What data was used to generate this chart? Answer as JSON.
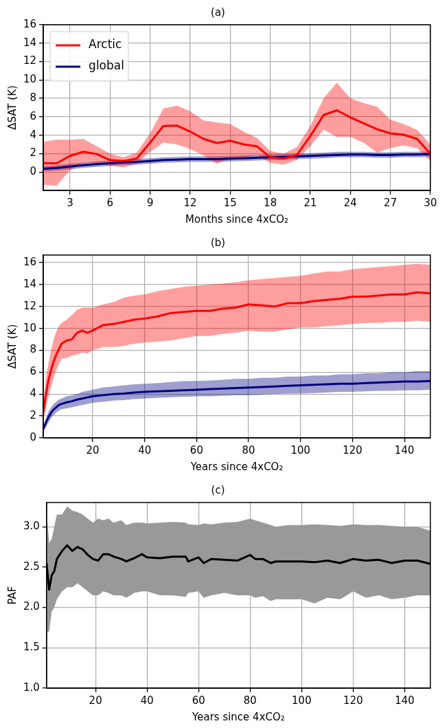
{
  "chart_data": [
    {
      "type": "line",
      "title": "(a)",
      "xlabel": "Months since 4xCO₂",
      "ylabel": "ΔSAT (K)",
      "x": [
        1,
        2,
        3,
        4,
        5,
        6,
        7,
        8,
        9,
        10,
        11,
        12,
        13,
        14,
        15,
        16,
        17,
        18,
        19,
        20,
        21,
        22,
        23,
        24,
        25,
        26,
        27,
        28,
        29,
        30
      ],
      "xlim": [
        1,
        30
      ],
      "xticks": [
        3,
        6,
        9,
        12,
        15,
        18,
        21,
        24,
        27,
        30
      ],
      "ylim": [
        -2,
        16
      ],
      "yticks": [
        0,
        2,
        4,
        6,
        8,
        10,
        12,
        14,
        16
      ],
      "grid": true,
      "legend": "top left",
      "series": [
        {
          "name": "Arctic",
          "color": "#ff0000",
          "values": [
            0.95,
            0.95,
            1.75,
            2.2,
            1.95,
            1.3,
            1.2,
            1.45,
            3.2,
            5.0,
            5.05,
            4.4,
            3.6,
            3.15,
            3.4,
            3.0,
            2.8,
            1.6,
            1.45,
            1.85,
            3.9,
            6.2,
            6.7,
            5.95,
            5.3,
            4.65,
            4.2,
            4.05,
            3.6,
            2.0
          ],
          "upper": [
            3.3,
            3.5,
            3.5,
            3.6,
            2.8,
            2.0,
            1.6,
            2.1,
            4.2,
            6.9,
            7.2,
            6.6,
            5.6,
            5.4,
            5.2,
            4.4,
            3.7,
            2.3,
            2.0,
            2.7,
            5.0,
            8.0,
            9.7,
            8.0,
            7.5,
            7.1,
            5.7,
            5.2,
            4.6,
            3.0
          ],
          "lower": [
            -1.4,
            -1.5,
            0.2,
            1.0,
            1.0,
            0.7,
            0.5,
            0.9,
            2.2,
            3.2,
            3.0,
            2.5,
            1.8,
            0.9,
            1.5,
            1.6,
            1.8,
            1.0,
            0.8,
            1.3,
            2.8,
            4.6,
            3.8,
            3.8,
            3.2,
            2.1,
            2.6,
            2.9,
            2.6,
            1.2
          ]
        },
        {
          "name": "global",
          "color": "#000080",
          "values": [
            0.35,
            0.45,
            0.6,
            0.75,
            0.85,
            0.95,
            1.05,
            1.1,
            1.2,
            1.3,
            1.35,
            1.4,
            1.4,
            1.4,
            1.45,
            1.5,
            1.55,
            1.6,
            1.65,
            1.7,
            1.75,
            1.8,
            1.85,
            1.9,
            1.9,
            1.85,
            1.85,
            1.9,
            1.9,
            1.95
          ],
          "upper": [
            0.6,
            0.75,
            0.9,
            1.05,
            1.15,
            1.25,
            1.35,
            1.4,
            1.5,
            1.6,
            1.65,
            1.7,
            1.7,
            1.7,
            1.75,
            1.8,
            1.85,
            1.9,
            1.95,
            2.0,
            2.05,
            2.1,
            2.2,
            2.2,
            2.2,
            2.15,
            2.15,
            2.2,
            2.2,
            2.25
          ],
          "lower": [
            0.1,
            0.15,
            0.3,
            0.45,
            0.55,
            0.65,
            0.75,
            0.8,
            0.9,
            1.0,
            1.05,
            1.1,
            1.1,
            1.1,
            1.15,
            1.2,
            1.25,
            1.3,
            1.35,
            1.4,
            1.45,
            1.5,
            1.6,
            1.6,
            1.6,
            1.55,
            1.55,
            1.6,
            1.6,
            1.65
          ]
        }
      ]
    },
    {
      "type": "line",
      "title": "(b)",
      "xlabel": "Years since 4xCO₂",
      "ylabel": "ΔSAT (K)",
      "x": [
        1,
        2,
        3,
        4,
        5,
        6,
        7,
        8,
        10,
        12,
        14,
        16,
        18,
        20,
        24,
        28,
        32,
        36,
        40,
        45,
        50,
        55,
        60,
        65,
        70,
        75,
        80,
        85,
        90,
        95,
        100,
        105,
        110,
        115,
        120,
        125,
        130,
        135,
        140,
        145,
        150
      ],
      "xlim": [
        1,
        150
      ],
      "xticks": [
        20,
        40,
        60,
        80,
        100,
        120,
        140
      ],
      "ylim": [
        0,
        16.7
      ],
      "yticks": [
        0,
        2,
        4,
        6,
        8,
        10,
        12,
        14,
        16
      ],
      "grid": true,
      "series": [
        {
          "color": "#ff0000",
          "values": [
            2.3,
            4.0,
            5.3,
            6.2,
            7.0,
            7.6,
            8.1,
            8.6,
            8.9,
            9.0,
            9.6,
            9.8,
            9.6,
            9.8,
            10.3,
            10.4,
            10.6,
            10.8,
            10.9,
            11.1,
            11.4,
            11.5,
            11.6,
            11.6,
            11.8,
            11.9,
            12.2,
            12.1,
            12.0,
            12.3,
            12.3,
            12.5,
            12.6,
            12.7,
            12.9,
            12.9,
            13.0,
            13.1,
            13.1,
            13.3,
            13.2
          ],
          "upper": [
            3.0,
            5.5,
            6.8,
            8.0,
            9.0,
            9.7,
            10.2,
            10.5,
            10.8,
            11.2,
            11.7,
            11.9,
            11.9,
            11.9,
            12.2,
            12.4,
            12.8,
            13.0,
            13.1,
            13.4,
            13.6,
            13.8,
            13.9,
            14.0,
            14.1,
            14.2,
            14.4,
            14.5,
            14.6,
            14.7,
            14.8,
            15.0,
            15.2,
            15.2,
            15.4,
            15.5,
            15.6,
            15.7,
            15.8,
            15.9,
            15.8
          ],
          "lower": [
            1.5,
            2.8,
            3.8,
            4.7,
            5.5,
            6.2,
            6.7,
            7.2,
            7.3,
            7.5,
            7.6,
            7.8,
            7.7,
            8.0,
            8.3,
            8.3,
            8.4,
            8.6,
            8.7,
            8.8,
            8.9,
            9.1,
            9.3,
            9.3,
            9.5,
            9.6,
            9.8,
            9.7,
            9.7,
            9.9,
            10.1,
            10.1,
            10.2,
            10.3,
            10.4,
            10.5,
            10.5,
            10.6,
            10.6,
            10.7,
            10.6
          ]
        },
        {
          "color": "#000080",
          "values": [
            0.8,
            1.4,
            1.9,
            2.3,
            2.6,
            2.8,
            3.0,
            3.1,
            3.25,
            3.35,
            3.5,
            3.6,
            3.7,
            3.8,
            3.9,
            4.0,
            4.05,
            4.15,
            4.2,
            4.25,
            4.3,
            4.35,
            4.4,
            4.45,
            4.5,
            4.55,
            4.6,
            4.65,
            4.7,
            4.75,
            4.8,
            4.85,
            4.9,
            4.95,
            4.95,
            5.0,
            5.05,
            5.1,
            5.15,
            5.15,
            5.2
          ],
          "upper": [
            1.1,
            1.8,
            2.4,
            2.8,
            3.1,
            3.3,
            3.5,
            3.6,
            3.8,
            3.9,
            4.0,
            4.2,
            4.3,
            4.4,
            4.6,
            4.7,
            4.8,
            4.9,
            4.95,
            5.0,
            5.1,
            5.2,
            5.2,
            5.25,
            5.3,
            5.4,
            5.4,
            5.5,
            5.5,
            5.6,
            5.6,
            5.7,
            5.7,
            5.8,
            5.8,
            5.9,
            5.9,
            6.0,
            6.0,
            6.1,
            6.1
          ],
          "lower": [
            0.6,
            1.0,
            1.4,
            1.8,
            2.1,
            2.3,
            2.5,
            2.6,
            2.7,
            2.8,
            2.9,
            3.0,
            3.1,
            3.2,
            3.3,
            3.4,
            3.45,
            3.55,
            3.6,
            3.65,
            3.7,
            3.75,
            3.8,
            3.8,
            3.85,
            3.9,
            3.9,
            3.95,
            4.0,
            4.05,
            4.05,
            4.1,
            4.15,
            4.2,
            4.2,
            4.25,
            4.3,
            4.3,
            4.35,
            4.35,
            4.4
          ]
        }
      ]
    },
    {
      "type": "line",
      "title": "(c)",
      "xlabel": "Years since 4xCO₂",
      "ylabel": "PAF",
      "x": [
        1,
        2,
        3,
        4,
        5,
        7,
        9,
        11,
        13,
        15,
        17,
        19,
        21,
        23,
        25,
        27,
        30,
        32,
        35,
        38,
        40,
        45,
        50,
        55,
        56,
        60,
        62,
        65,
        70,
        75,
        80,
        82,
        85,
        88,
        90,
        95,
        100,
        105,
        110,
        115,
        120,
        125,
        130,
        135,
        140,
        145,
        150
      ],
      "xlim": [
        1,
        150
      ],
      "xticks": [
        20,
        40,
        60,
        80,
        100,
        120,
        140
      ],
      "ylim": [
        1,
        3.3
      ],
      "yticks": [
        {
          "value": 1,
          "label": "1.0"
        },
        {
          "value": 1.5,
          "label": "1.5"
        },
        {
          "value": 2,
          "label": "2.0"
        },
        {
          "value": 2.5,
          "label": "2.5"
        },
        {
          "value": 3,
          "label": "3.0"
        }
      ],
      "grid": true,
      "series": [
        {
          "color": "#000000",
          "values": [
            2.55,
            2.22,
            2.4,
            2.45,
            2.6,
            2.7,
            2.77,
            2.7,
            2.75,
            2.72,
            2.65,
            2.6,
            2.58,
            2.66,
            2.66,
            2.63,
            2.6,
            2.57,
            2.61,
            2.66,
            2.62,
            2.61,
            2.63,
            2.63,
            2.57,
            2.62,
            2.55,
            2.6,
            2.59,
            2.58,
            2.65,
            2.6,
            2.6,
            2.55,
            2.57,
            2.57,
            2.57,
            2.56,
            2.58,
            2.55,
            2.6,
            2.58,
            2.59,
            2.55,
            2.58,
            2.58,
            2.54
          ],
          "upper": [
            3.2,
            2.8,
            2.85,
            3.0,
            3.15,
            3.15,
            3.25,
            3.2,
            3.18,
            3.15,
            3.1,
            3.05,
            3.1,
            3.08,
            3.1,
            3.05,
            3.08,
            3.02,
            3.05,
            3.05,
            3.04,
            3.05,
            3.06,
            3.05,
            3.03,
            3.02,
            3.04,
            3.03,
            3.05,
            3.06,
            3.1,
            3.08,
            3.05,
            3.02,
            3.0,
            3.02,
            3.02,
            3.03,
            3.02,
            3.01,
            3.03,
            3.02,
            3.02,
            3.01,
            3.0,
            3.0,
            2.95
          ],
          "lower": [
            1.7,
            1.7,
            1.95,
            2.0,
            2.1,
            2.2,
            2.25,
            2.25,
            2.3,
            2.25,
            2.2,
            2.15,
            2.15,
            2.2,
            2.18,
            2.15,
            2.15,
            2.12,
            2.18,
            2.2,
            2.2,
            2.15,
            2.15,
            2.13,
            2.18,
            2.2,
            2.12,
            2.15,
            2.18,
            2.15,
            2.15,
            2.12,
            2.14,
            2.08,
            2.1,
            2.1,
            2.1,
            2.05,
            2.12,
            2.1,
            2.2,
            2.12,
            2.15,
            2.1,
            2.12,
            2.15,
            2.15
          ]
        }
      ]
    }
  ]
}
